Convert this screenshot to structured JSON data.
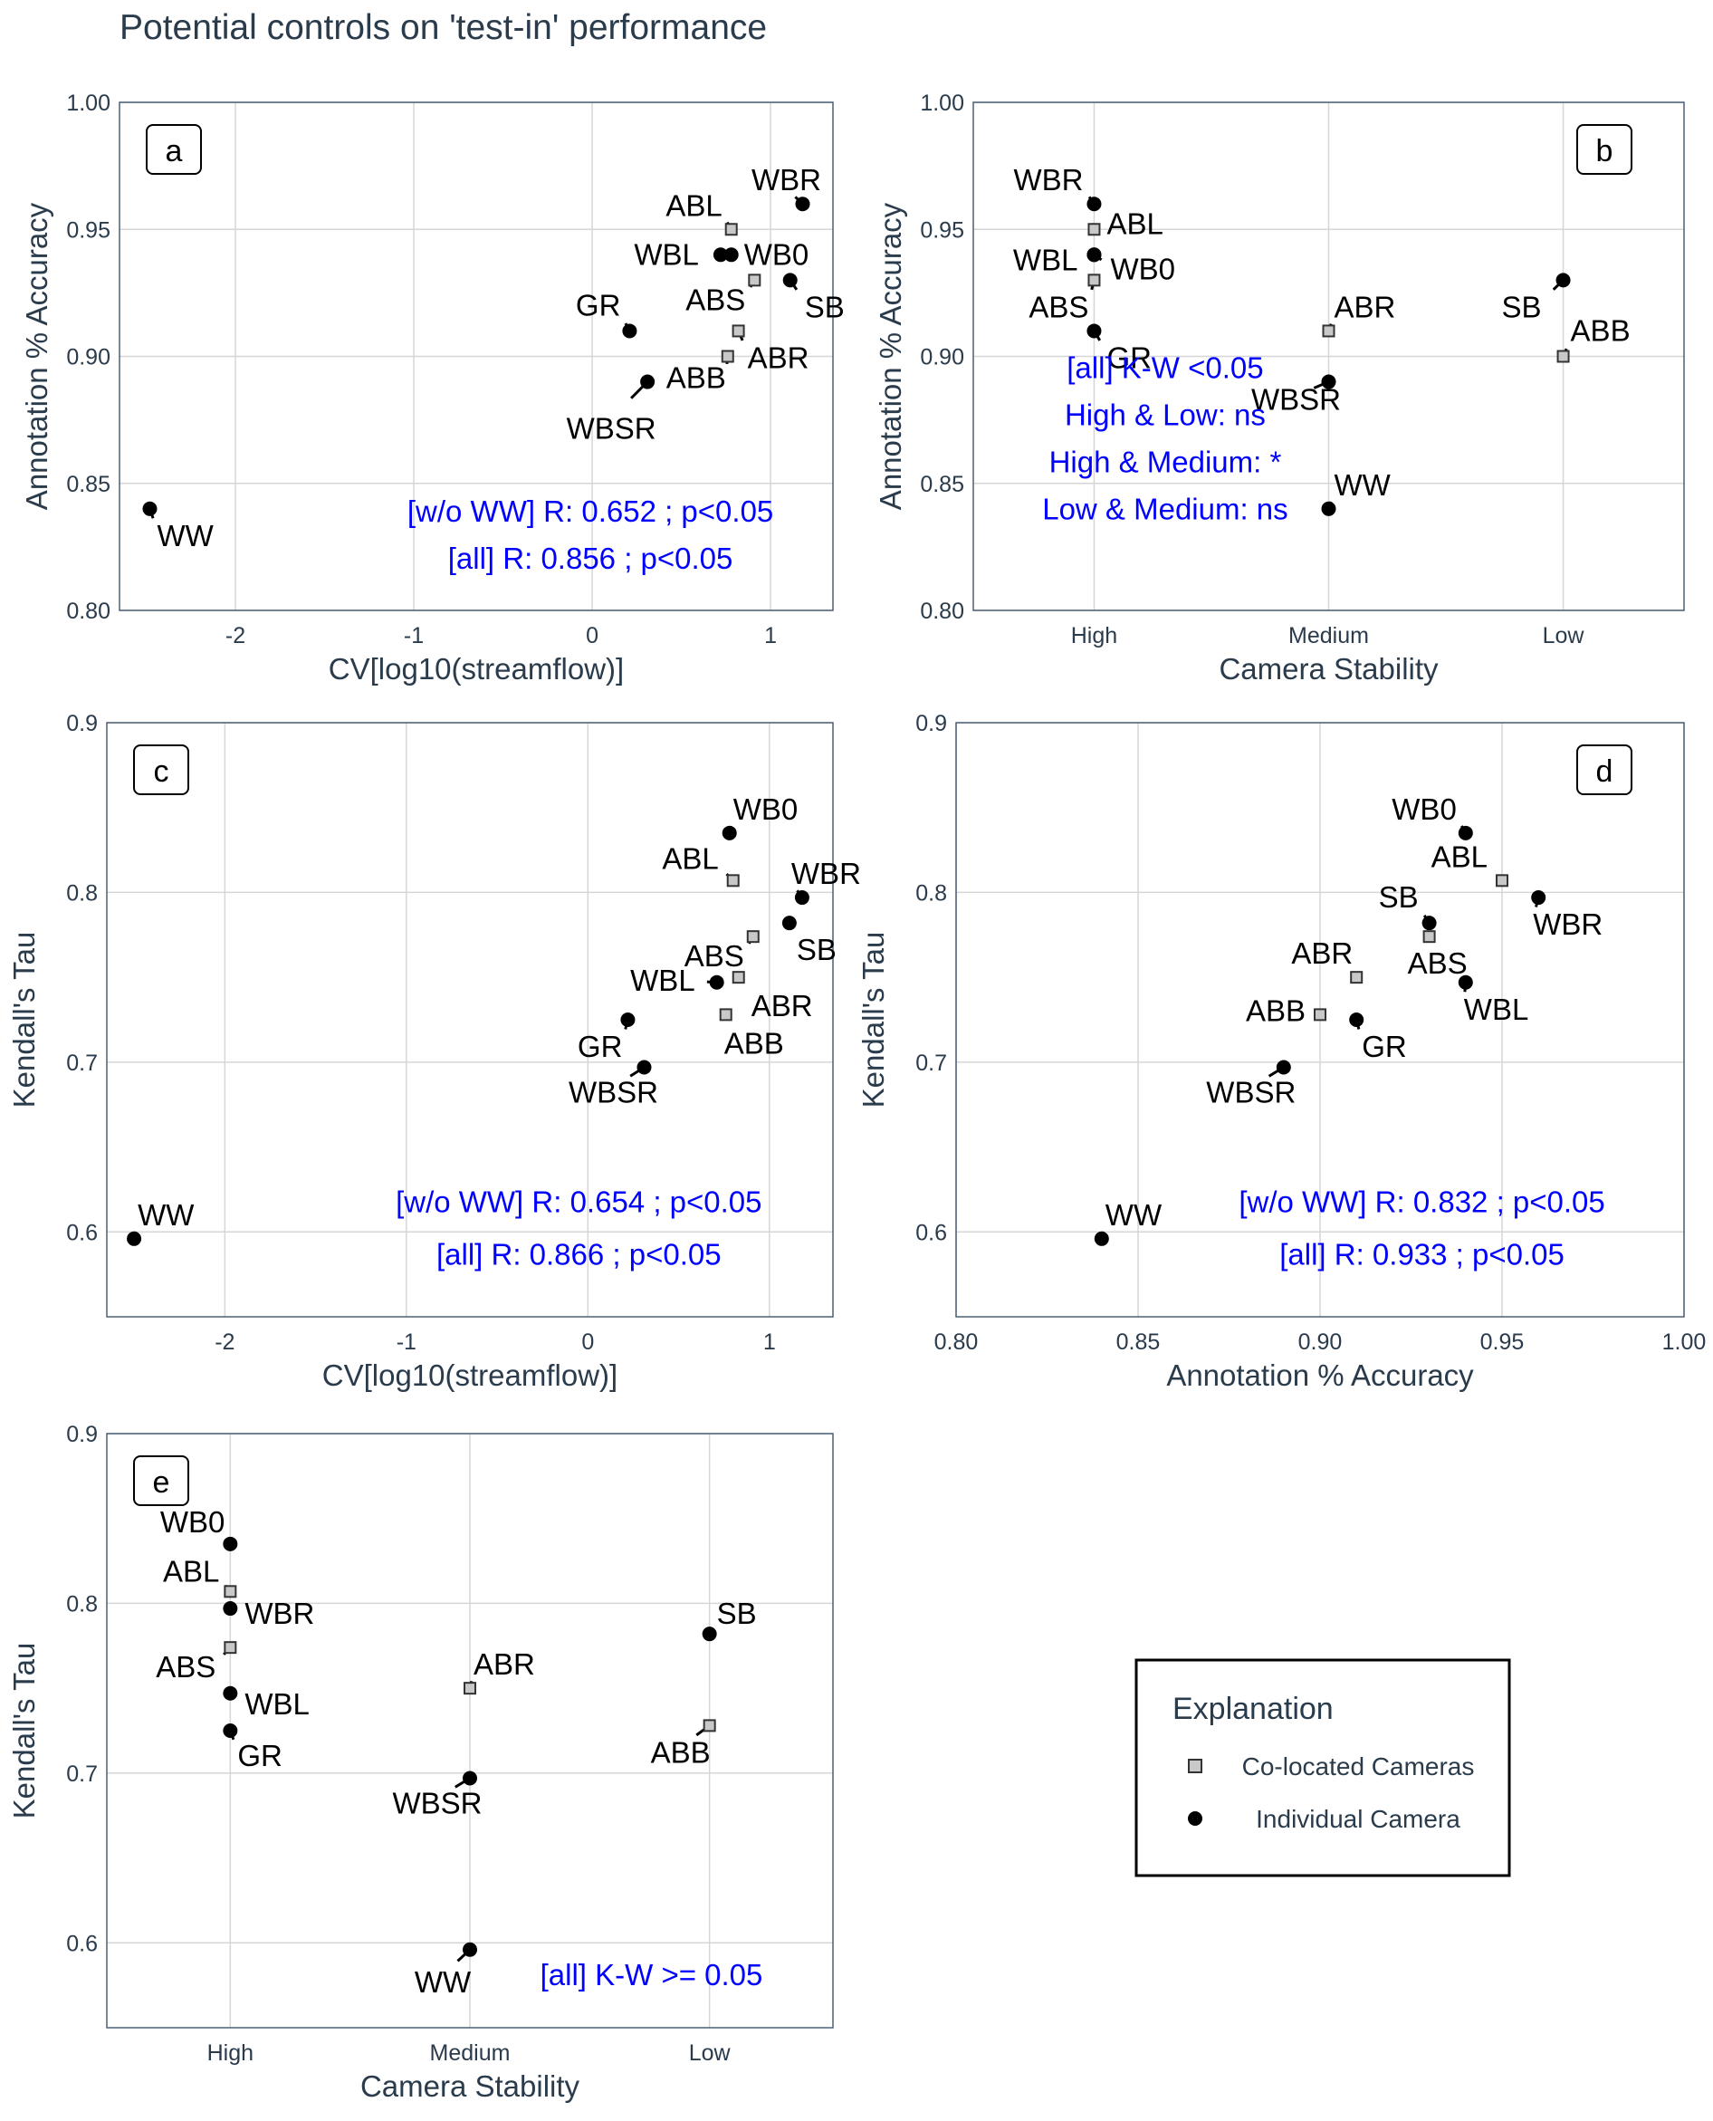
{
  "title": "Potential controls on 'test-in' performance",
  "colors": {
    "annotation_text": "#0000ff",
    "individual_marker": "#000000",
    "colocated_fill": "#c8c8c8",
    "grid": "#d6d6d6",
    "frame": "#4a6076"
  },
  "legend": {
    "title": "Explanation",
    "entries": [
      {
        "label": "Co-located Cameras",
        "marker": "square"
      },
      {
        "label": "Individual Camera",
        "marker": "circle"
      }
    ]
  },
  "chart_data": [
    {
      "panel": "a",
      "type": "scatter",
      "xlabel": "CV[log10(streamflow)]",
      "ylabel": "Annotation % Accuracy",
      "xlim": [
        -2.65,
        1.35
      ],
      "ylim": [
        0.8,
        1.0
      ],
      "xticks": [
        "-2",
        "-1",
        "0",
        "1"
      ],
      "yticks": [
        "0.80",
        "0.85",
        "0.90",
        "0.95",
        "1.00"
      ],
      "annotations": [
        "[w/o WW] R: 0.652 ; p<0.05",
        "[all] R: 0.856 ; p<0.05"
      ],
      "points": [
        {
          "label": "WBR",
          "x": 1.18,
          "y": 0.96,
          "group": "individual"
        },
        {
          "label": "ABL",
          "x": 0.78,
          "y": 0.95,
          "group": "co-located"
        },
        {
          "label": "WBL",
          "x": 0.72,
          "y": 0.94,
          "group": "individual"
        },
        {
          "label": "WB0",
          "x": 0.78,
          "y": 0.94,
          "group": "individual"
        },
        {
          "label": "ABS",
          "x": 0.91,
          "y": 0.93,
          "group": "co-located"
        },
        {
          "label": "SB",
          "x": 1.11,
          "y": 0.93,
          "group": "individual"
        },
        {
          "label": "GR",
          "x": 0.21,
          "y": 0.91,
          "group": "individual"
        },
        {
          "label": "ABR",
          "x": 0.82,
          "y": 0.91,
          "group": "co-located"
        },
        {
          "label": "ABB",
          "x": 0.76,
          "y": 0.9,
          "group": "co-located"
        },
        {
          "label": "WBSR",
          "x": 0.31,
          "y": 0.89,
          "group": "individual"
        },
        {
          "label": "WW",
          "x": -2.48,
          "y": 0.84,
          "group": "individual"
        }
      ]
    },
    {
      "panel": "b",
      "type": "scatter",
      "xlabel": "Camera Stability",
      "ylabel": "Annotation % Accuracy",
      "categories": [
        "High",
        "Medium",
        "Low"
      ],
      "ylim": [
        0.8,
        1.0
      ],
      "yticks": [
        "0.80",
        "0.85",
        "0.90",
        "0.95",
        "1.00"
      ],
      "annotations": [
        "[all] K-W <0.05",
        "High & Low: ns",
        "High & Medium: *",
        "Low & Medium: ns"
      ],
      "points": [
        {
          "label": "WBR",
          "x": "High",
          "y": 0.96,
          "group": "individual"
        },
        {
          "label": "ABL",
          "x": "High",
          "y": 0.95,
          "group": "co-located"
        },
        {
          "label": "WBL",
          "x": "High",
          "y": 0.94,
          "group": "individual"
        },
        {
          "label": "WB0",
          "x": "High",
          "y": 0.94,
          "group": "individual"
        },
        {
          "label": "ABS",
          "x": "High",
          "y": 0.93,
          "group": "co-located"
        },
        {
          "label": "GR",
          "x": "High",
          "y": 0.91,
          "group": "individual"
        },
        {
          "label": "ABR",
          "x": "Medium",
          "y": 0.91,
          "group": "co-located"
        },
        {
          "label": "WBSR",
          "x": "Medium",
          "y": 0.89,
          "group": "individual"
        },
        {
          "label": "WW",
          "x": "Medium",
          "y": 0.84,
          "group": "individual"
        },
        {
          "label": "SB",
          "x": "Low",
          "y": 0.93,
          "group": "individual"
        },
        {
          "label": "ABB",
          "x": "Low",
          "y": 0.9,
          "group": "co-located"
        }
      ]
    },
    {
      "panel": "c",
      "type": "scatter",
      "xlabel": "CV[log10(streamflow)]",
      "ylabel": "Kendall's Tau",
      "xlim": [
        -2.65,
        1.35
      ],
      "ylim": [
        0.55,
        0.9
      ],
      "xticks": [
        "-2",
        "-1",
        "0",
        "1"
      ],
      "yticks": [
        "0.6",
        "0.7",
        "0.8",
        "0.9"
      ],
      "annotations": [
        "[w/o WW] R: 0.654 ; p<0.05",
        "[all] R: 0.866 ; p<0.05"
      ],
      "points": [
        {
          "label": "WB0",
          "x": 0.78,
          "y": 0.835,
          "group": "individual"
        },
        {
          "label": "ABL",
          "x": 0.8,
          "y": 0.807,
          "group": "co-located"
        },
        {
          "label": "WBR",
          "x": 1.18,
          "y": 0.797,
          "group": "individual"
        },
        {
          "label": "SB",
          "x": 1.11,
          "y": 0.782,
          "group": "individual"
        },
        {
          "label": "ABS",
          "x": 0.91,
          "y": 0.774,
          "group": "co-located"
        },
        {
          "label": "ABR",
          "x": 0.83,
          "y": 0.75,
          "group": "co-located"
        },
        {
          "label": "WBL",
          "x": 0.71,
          "y": 0.747,
          "group": "individual"
        },
        {
          "label": "ABB",
          "x": 0.76,
          "y": 0.728,
          "group": "co-located"
        },
        {
          "label": "GR",
          "x": 0.22,
          "y": 0.725,
          "group": "individual"
        },
        {
          "label": "WBSR",
          "x": 0.31,
          "y": 0.697,
          "group": "individual"
        },
        {
          "label": "WW",
          "x": -2.5,
          "y": 0.596,
          "group": "individual"
        }
      ]
    },
    {
      "panel": "d",
      "type": "scatter",
      "xlabel": "Annotation % Accuracy",
      "ylabel": "Kendall's Tau",
      "xlim": [
        0.8,
        1.0
      ],
      "ylim": [
        0.55,
        0.9
      ],
      "xticks": [
        "0.80",
        "0.85",
        "0.90",
        "0.95",
        "1.00"
      ],
      "yticks": [
        "0.6",
        "0.7",
        "0.8",
        "0.9"
      ],
      "annotations": [
        "[w/o WW] R: 0.832 ; p<0.05",
        "[all] R: 0.933 ; p<0.05"
      ],
      "points": [
        {
          "label": "WB0",
          "x": 0.94,
          "y": 0.835,
          "group": "individual"
        },
        {
          "label": "ABL",
          "x": 0.95,
          "y": 0.807,
          "group": "co-located"
        },
        {
          "label": "WBR",
          "x": 0.96,
          "y": 0.797,
          "group": "individual"
        },
        {
          "label": "SB",
          "x": 0.93,
          "y": 0.782,
          "group": "individual"
        },
        {
          "label": "ABS",
          "x": 0.93,
          "y": 0.774,
          "group": "co-located"
        },
        {
          "label": "ABR",
          "x": 0.91,
          "y": 0.75,
          "group": "co-located"
        },
        {
          "label": "WBL",
          "x": 0.94,
          "y": 0.747,
          "group": "individual"
        },
        {
          "label": "ABB",
          "x": 0.9,
          "y": 0.728,
          "group": "co-located"
        },
        {
          "label": "GR",
          "x": 0.91,
          "y": 0.725,
          "group": "individual"
        },
        {
          "label": "WBSR",
          "x": 0.89,
          "y": 0.697,
          "group": "individual"
        },
        {
          "label": "WW",
          "x": 0.84,
          "y": 0.596,
          "group": "individual"
        }
      ]
    },
    {
      "panel": "e",
      "type": "scatter",
      "xlabel": "Camera Stability",
      "ylabel": "Kendall's Tau",
      "categories": [
        "High",
        "Medium",
        "Low"
      ],
      "ylim": [
        0.55,
        0.9
      ],
      "yticks": [
        "0.6",
        "0.7",
        "0.8",
        "0.9"
      ],
      "annotations": [
        "[all] K-W >= 0.05"
      ],
      "points": [
        {
          "label": "WB0",
          "x": "High",
          "y": 0.835,
          "group": "individual"
        },
        {
          "label": "ABL",
          "x": "High",
          "y": 0.807,
          "group": "co-located"
        },
        {
          "label": "WBR",
          "x": "High",
          "y": 0.797,
          "group": "individual"
        },
        {
          "label": "ABS",
          "x": "High",
          "y": 0.774,
          "group": "co-located"
        },
        {
          "label": "WBL",
          "x": "High",
          "y": 0.747,
          "group": "individual"
        },
        {
          "label": "GR",
          "x": "High",
          "y": 0.725,
          "group": "individual"
        },
        {
          "label": "ABR",
          "x": "Medium",
          "y": 0.75,
          "group": "co-located"
        },
        {
          "label": "WBSR",
          "x": "Medium",
          "y": 0.697,
          "group": "individual"
        },
        {
          "label": "WW",
          "x": "Medium",
          "y": 0.596,
          "group": "individual"
        },
        {
          "label": "SB",
          "x": "Low",
          "y": 0.782,
          "group": "individual"
        },
        {
          "label": "ABB",
          "x": "Low",
          "y": 0.728,
          "group": "co-located"
        }
      ]
    }
  ]
}
